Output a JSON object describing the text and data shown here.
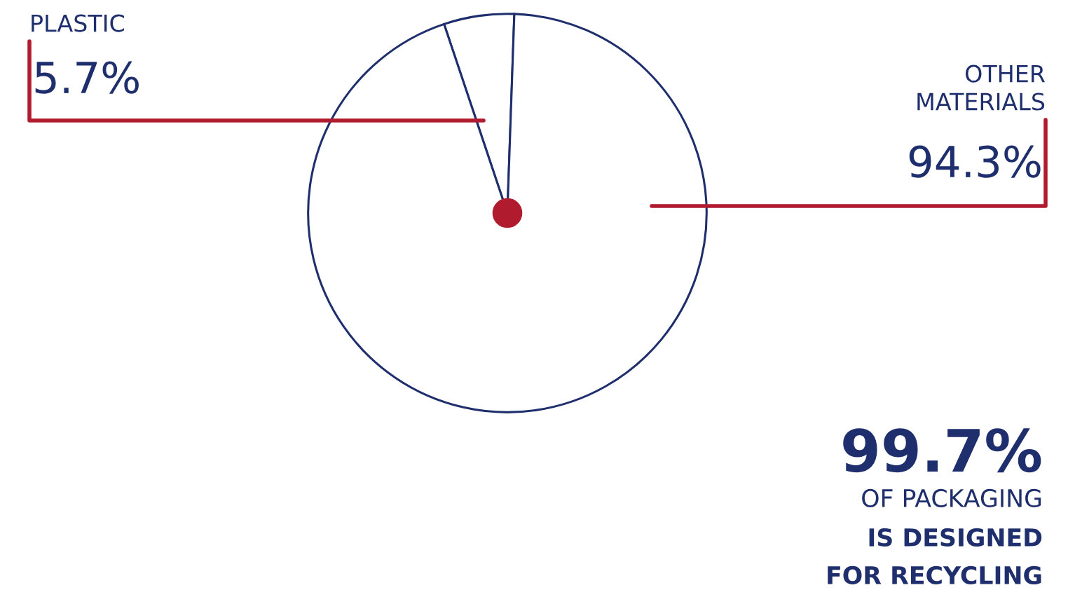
{
  "chart_data": {
    "type": "pie",
    "categories": [
      "PLASTIC",
      "OTHER MATERIALS"
    ],
    "values": [
      5.7,
      94.3
    ],
    "colors": [
      "#ffffff",
      "#ffffff"
    ],
    "value_labels": [
      "5.7%",
      "94.3%"
    ],
    "annotations": [
      "99.7%",
      "OF PACKAGING",
      "IS DESIGNED",
      "FOR RECYCLING"
    ]
  }
}
